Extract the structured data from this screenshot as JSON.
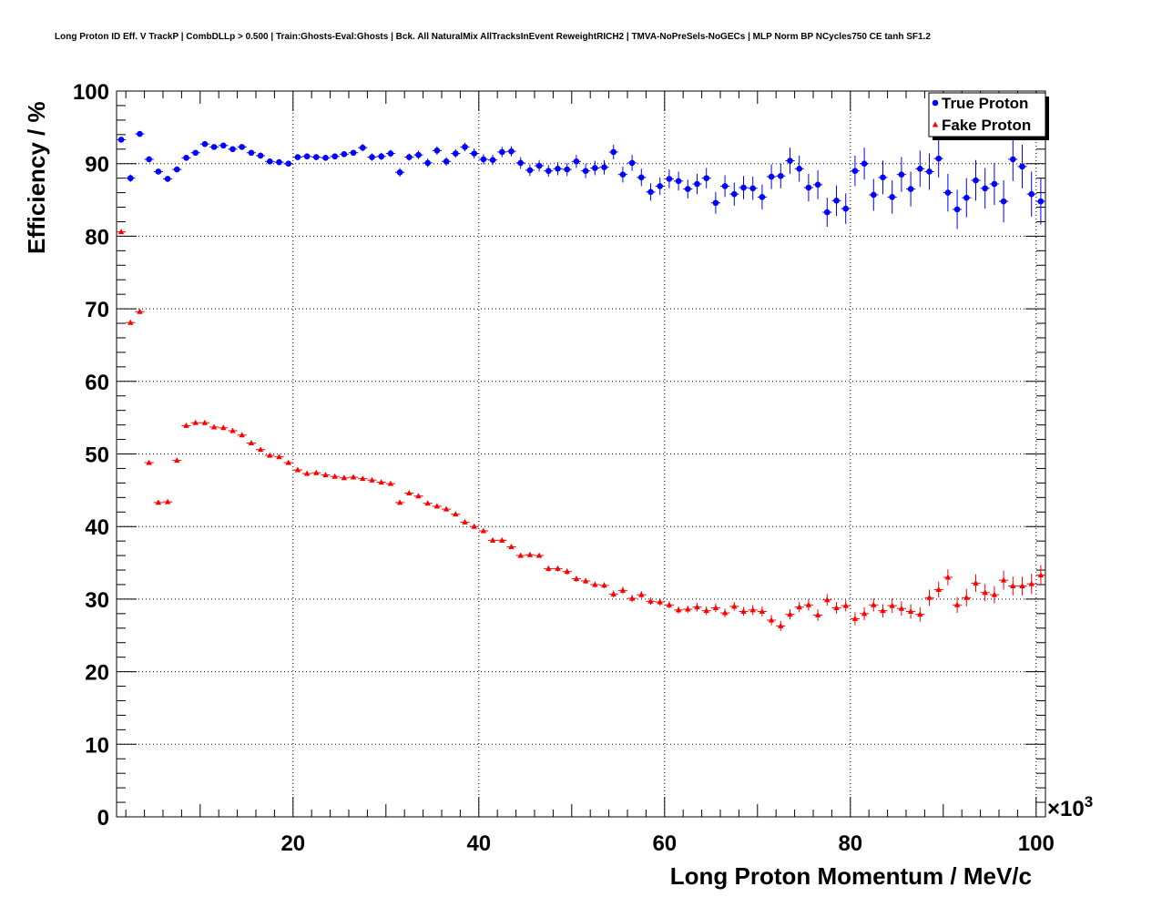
{
  "chart_data": {
    "type": "scatter",
    "title": "Long Proton ID Eff. V TrackP | CombDLLp > 0.500 | Train:Ghosts-Eval:Ghosts | Bck. All NaturalMix AllTracksInEvent ReweightRICH2 | TMVA-NoPreSels-NoGECs | MLP Norm BP NCycles750 CE tanh SF1.2",
    "xlabel": "Long Proton Momentum / MeV/c",
    "ylabel": "Efficiency / %",
    "x_multiplier_label": "×10",
    "x_multiplier_exponent": "3",
    "xlim": [
      1,
      101
    ],
    "ylim": [
      0,
      100
    ],
    "x_ticks": [
      "20",
      "40",
      "60",
      "80",
      "100"
    ],
    "y_ticks": [
      "0",
      "10",
      "20",
      "30",
      "40",
      "50",
      "60",
      "70",
      "80",
      "90",
      "100"
    ],
    "grid": true,
    "legend_position": "top-right",
    "series": [
      {
        "name": "True Proton",
        "color": "#0000ff",
        "marker": "circle",
        "x": [
          1.5,
          2.5,
          3.5,
          4.5,
          5.5,
          6.5,
          7.5,
          8.5,
          9.5,
          10.5,
          11.5,
          12.5,
          13.5,
          14.5,
          15.5,
          16.5,
          17.5,
          18.5,
          19.5,
          20.5,
          21.5,
          22.5,
          23.5,
          24.5,
          25.5,
          26.5,
          27.5,
          28.5,
          29.5,
          30.5,
          31.5,
          32.5,
          33.5,
          34.5,
          35.5,
          36.5,
          37.5,
          38.5,
          39.5,
          40.5,
          41.5,
          42.5,
          43.5,
          44.5,
          45.5,
          46.5,
          47.5,
          48.5,
          49.5,
          50.5,
          51.5,
          52.5,
          53.5,
          54.5,
          55.5,
          56.5,
          57.5,
          58.5,
          59.5,
          60.5,
          61.5,
          62.5,
          63.5,
          64.5,
          65.5,
          66.5,
          67.5,
          68.5,
          69.5,
          70.5,
          71.5,
          72.5,
          73.5,
          74.5,
          75.5,
          76.5,
          77.5,
          78.5,
          79.5,
          80.5,
          81.5,
          82.5,
          83.5,
          84.5,
          85.5,
          86.5,
          87.5,
          88.5,
          89.5,
          90.5,
          91.5,
          92.5,
          93.5,
          94.5,
          95.5,
          96.5,
          97.5,
          98.5,
          99.5,
          100.5
        ],
        "y": [
          93.3,
          88.0,
          94.1,
          90.6,
          88.9,
          87.9,
          89.2,
          90.8,
          91.5,
          92.7,
          92.3,
          92.5,
          92.0,
          92.3,
          91.5,
          91.1,
          90.3,
          90.2,
          90.0,
          90.9,
          91.0,
          90.9,
          90.8,
          91.0,
          91.3,
          91.5,
          92.2,
          90.9,
          91.0,
          91.4,
          88.8,
          90.9,
          91.2,
          90.1,
          91.8,
          90.3,
          91.4,
          92.3,
          91.4,
          90.6,
          90.5,
          91.6,
          91.7,
          90.1,
          89.1,
          89.7,
          89.0,
          89.3,
          89.2,
          90.3,
          89.0,
          89.4,
          89.5,
          91.6,
          88.5,
          90.1,
          88.1,
          86.1,
          86.9,
          87.9,
          87.6,
          86.5,
          87.2,
          88.0,
          84.6,
          86.9,
          85.8,
          86.7,
          86.6,
          85.4,
          88.2,
          88.3,
          90.4,
          89.3,
          86.7,
          87.1,
          83.3,
          84.9,
          83.8,
          89.0,
          90.0,
          85.7,
          88.1,
          85.4,
          88.5,
          86.5,
          89.3,
          88.9,
          90.7,
          86.0,
          83.7,
          85.3,
          87.7,
          86.6,
          87.2,
          84.8,
          90.6,
          89.6,
          85.8,
          84.8
        ],
        "err": [
          0.3,
          0.5,
          0.3,
          0.4,
          0.4,
          0.4,
          0.4,
          0.3,
          0.3,
          0.3,
          0.3,
          0.3,
          0.3,
          0.3,
          0.3,
          0.4,
          0.4,
          0.4,
          0.4,
          0.4,
          0.4,
          0.4,
          0.4,
          0.4,
          0.4,
          0.4,
          0.5,
          0.5,
          0.5,
          0.5,
          0.6,
          0.5,
          0.6,
          0.6,
          0.6,
          0.6,
          0.6,
          0.6,
          0.7,
          0.7,
          0.7,
          0.7,
          0.7,
          0.8,
          0.8,
          0.8,
          0.8,
          0.9,
          0.9,
          0.9,
          1.0,
          1.0,
          1.0,
          1.0,
          1.1,
          1.1,
          1.2,
          1.2,
          1.2,
          1.3,
          1.3,
          1.3,
          1.4,
          1.4,
          1.5,
          1.5,
          1.6,
          1.6,
          1.6,
          1.7,
          1.7,
          1.7,
          1.8,
          1.8,
          1.9,
          2.0,
          2.0,
          2.1,
          2.1,
          2.1,
          2.2,
          2.2,
          2.3,
          2.3,
          2.4,
          2.4,
          2.5,
          2.5,
          2.6,
          2.6,
          2.7,
          2.7,
          2.8,
          2.8,
          2.9,
          2.9,
          3.0,
          3.0,
          3.1,
          3.2
        ]
      },
      {
        "name": "Fake Proton",
        "color": "#ff0000",
        "marker": "triangle",
        "x": [
          1.5,
          2.5,
          3.5,
          4.5,
          5.5,
          6.5,
          7.5,
          8.5,
          9.5,
          10.5,
          11.5,
          12.5,
          13.5,
          14.5,
          15.5,
          16.5,
          17.5,
          18.5,
          19.5,
          20.5,
          21.5,
          22.5,
          23.5,
          24.5,
          25.5,
          26.5,
          27.5,
          28.5,
          29.5,
          30.5,
          31.5,
          32.5,
          33.5,
          34.5,
          35.5,
          36.5,
          37.5,
          38.5,
          39.5,
          40.5,
          41.5,
          42.5,
          43.5,
          44.5,
          45.5,
          46.5,
          47.5,
          48.5,
          49.5,
          50.5,
          51.5,
          52.5,
          53.5,
          54.5,
          55.5,
          56.5,
          57.5,
          58.5,
          59.5,
          60.5,
          61.5,
          62.5,
          63.5,
          64.5,
          65.5,
          66.5,
          67.5,
          68.5,
          69.5,
          70.5,
          71.5,
          72.5,
          73.5,
          74.5,
          75.5,
          76.5,
          77.5,
          78.5,
          79.5,
          80.5,
          81.5,
          82.5,
          83.5,
          84.5,
          85.5,
          86.5,
          87.5,
          88.5,
          89.5,
          90.5,
          91.5,
          92.5,
          93.5,
          94.5,
          95.5,
          96.5,
          97.5,
          98.5,
          99.5,
          100.5
        ],
        "y": [
          80.6,
          68.1,
          69.6,
          48.8,
          43.3,
          43.4,
          49.1,
          53.9,
          54.3,
          54.3,
          53.7,
          53.6,
          53.2,
          52.6,
          51.5,
          50.6,
          49.8,
          49.6,
          48.8,
          47.8,
          47.3,
          47.4,
          47.1,
          46.9,
          46.7,
          46.8,
          46.6,
          46.4,
          46.1,
          45.9,
          43.3,
          44.6,
          44.2,
          43.2,
          42.8,
          42.4,
          41.7,
          40.6,
          40.0,
          39.4,
          38.1,
          38.1,
          37.2,
          36.0,
          36.1,
          36.0,
          34.2,
          34.2,
          33.8,
          32.8,
          32.5,
          32.0,
          31.9,
          30.7,
          31.2,
          30.1,
          30.6,
          29.7,
          29.6,
          29.2,
          28.5,
          28.6,
          28.9,
          28.4,
          28.8,
          28.1,
          29.0,
          28.3,
          28.5,
          28.3,
          27.1,
          26.3,
          27.9,
          28.9,
          29.2,
          27.8,
          29.9,
          28.8,
          29.1,
          27.3,
          28.0,
          29.2,
          28.4,
          29.1,
          28.7,
          28.3,
          27.9,
          30.2,
          31.3,
          33.0,
          29.2,
          30.2,
          32.2,
          30.9,
          30.6,
          32.6,
          31.8,
          31.8,
          32.1,
          33.3
        ],
        "err": [
          0.2,
          0.2,
          0.2,
          0.2,
          0.2,
          0.2,
          0.2,
          0.2,
          0.2,
          0.2,
          0.2,
          0.2,
          0.2,
          0.2,
          0.2,
          0.2,
          0.2,
          0.2,
          0.2,
          0.2,
          0.2,
          0.2,
          0.2,
          0.2,
          0.2,
          0.2,
          0.2,
          0.2,
          0.2,
          0.2,
          0.2,
          0.2,
          0.3,
          0.3,
          0.3,
          0.3,
          0.3,
          0.3,
          0.3,
          0.3,
          0.3,
          0.3,
          0.3,
          0.3,
          0.3,
          0.3,
          0.4,
          0.4,
          0.4,
          0.4,
          0.4,
          0.4,
          0.4,
          0.5,
          0.5,
          0.5,
          0.5,
          0.5,
          0.5,
          0.5,
          0.5,
          0.5,
          0.6,
          0.6,
          0.6,
          0.6,
          0.6,
          0.6,
          0.7,
          0.7,
          0.7,
          0.7,
          0.7,
          0.7,
          0.8,
          0.8,
          0.8,
          0.8,
          0.8,
          0.9,
          0.9,
          0.9,
          0.9,
          1.0,
          1.0,
          1.0,
          1.0,
          1.1,
          1.1,
          1.1,
          1.1,
          1.2,
          1.2,
          1.2,
          1.2,
          1.3,
          1.3,
          1.3,
          1.4,
          1.4
        ]
      }
    ]
  }
}
